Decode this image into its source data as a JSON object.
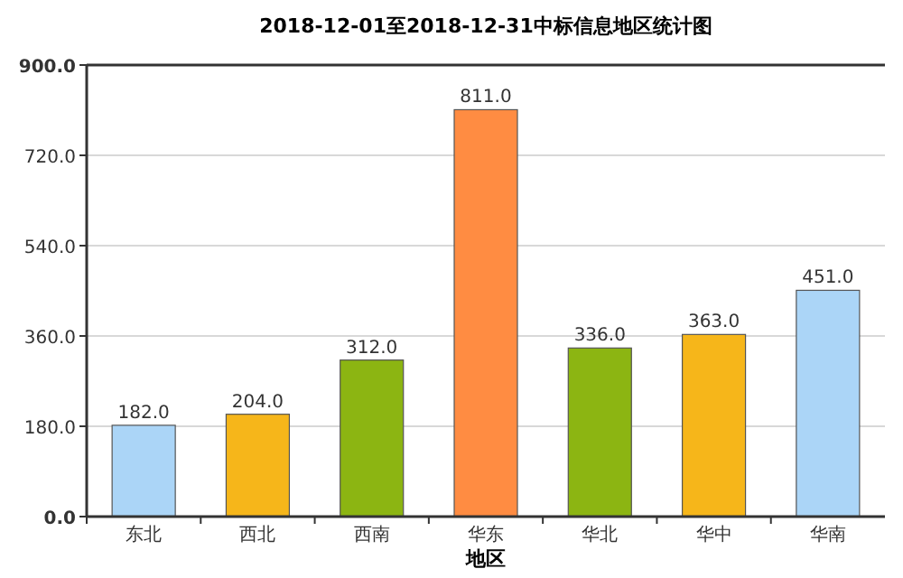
{
  "chart_data": {
    "type": "bar",
    "title": "2018-12-01至2018-12-31中标信息地区统计图",
    "xlabel": "地区",
    "categories": [
      "东北",
      "西北",
      "西南",
      "华东",
      "华北",
      "华中",
      "华南"
    ],
    "values": [
      182,
      204,
      312,
      811,
      336,
      363,
      451
    ],
    "colors": [
      "#abd5f7",
      "#f6b61a",
      "#8cb512",
      "#ff8c42",
      "#8cb512",
      "#f6b61a",
      "#abd5f7"
    ],
    "value_labels": [
      "182.0",
      "204.0",
      "312.0",
      "811.0",
      "336.0",
      "363.0",
      "451.0"
    ],
    "ylim": [
      0,
      900
    ],
    "yticks": [
      {
        "value": 0,
        "label": "0.0"
      },
      {
        "value": 180,
        "label": "180.0"
      },
      {
        "value": 360,
        "label": "360.0"
      },
      {
        "value": 540,
        "label": "540.0"
      },
      {
        "value": 720,
        "label": "720.0"
      },
      {
        "value": 900,
        "label": "900.0"
      }
    ],
    "grid": "y"
  }
}
